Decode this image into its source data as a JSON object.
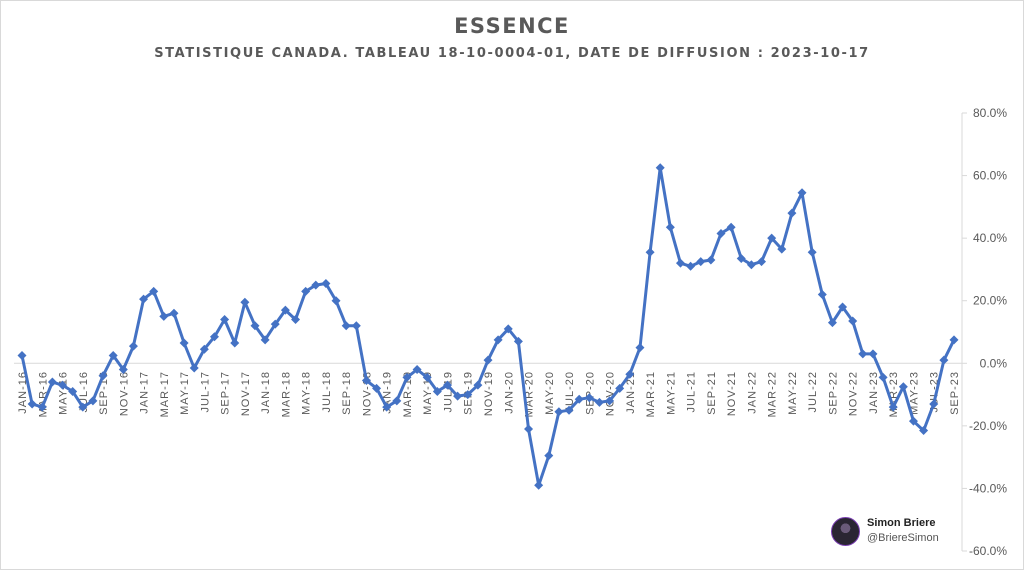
{
  "title": "ESSENCE",
  "subtitle": "STATISTIQUE CANADA.  TABLEAU 18-10-0004-01, DATE DE DIFFUSION : 2023-10-17",
  "author": {
    "name": "Simon Briere",
    "handle": "@BriereSimon"
  },
  "colors": {
    "series": "#4472c4",
    "text": "#595959",
    "zero_line": "#d9d9d9"
  },
  "chart_data": {
    "type": "line",
    "markers": "diamond",
    "y_axis_position": "right",
    "ylim": [
      -60,
      80
    ],
    "y_ticks": [
      80,
      60,
      40,
      20,
      0,
      -20,
      -40,
      -60
    ],
    "y_tick_labels": [
      "80.0%",
      "60.0%",
      "40.0%",
      "20.0%",
      "0.0%",
      "-20.0%",
      "-40.0%",
      "-60.0%"
    ],
    "x_tick_labels": [
      "JAN-16",
      "MAR-16",
      "MAY-16",
      "JUL-16",
      "SEP-16",
      "NOV-16",
      "JAN-17",
      "MAR-17",
      "MAY-17",
      "JUL-17",
      "SEP-17",
      "NOV-17",
      "JAN-18",
      "MAR-18",
      "MAY-18",
      "JUL-18",
      "SEP-18",
      "NOV-18",
      "JAN-19",
      "MAR-19",
      "MAY-19",
      "JUL-19",
      "SEP-19",
      "NOV-19",
      "JAN-20",
      "MAR-20",
      "MAY-20",
      "JUL-20",
      "SEP-20",
      "NOV-20",
      "JAN-21",
      "MAR-21",
      "MAY-21",
      "JUL-21",
      "SEP-21",
      "NOV-21",
      "JAN-22",
      "MAR-22",
      "MAY-22",
      "JUL-22",
      "SEP-22",
      "NOV-22",
      "JAN-23",
      "MAR-23",
      "MAY-23",
      "JUL-23",
      "SEP-23"
    ],
    "grid": false,
    "values": [
      2.5,
      -13,
      -14,
      -6,
      -7,
      -9,
      -14,
      -12,
      -4,
      2.5,
      -2,
      5.5,
      20.5,
      23,
      15,
      16,
      6.5,
      -1.5,
      4.5,
      8.5,
      14,
      6.5,
      19.5,
      12,
      7.5,
      12.5,
      17,
      14,
      23,
      25,
      25.5,
      20,
      12,
      12,
      -5.5,
      -8,
      -14,
      -12,
      -4.5,
      -2,
      -4.5,
      -9,
      -7,
      -10.5,
      -10,
      -7,
      1,
      7.5,
      11,
      7,
      -21,
      -39,
      -29.5,
      -15.5,
      -15,
      -11.5,
      -11,
      -12.5,
      -12,
      -8,
      -3.5,
      5,
      35.5,
      62.5,
      43.5,
      32,
      31,
      32.5,
      33,
      41.5,
      43.5,
      33.5,
      31.5,
      32.5,
      40,
      36.5,
      48,
      54.5,
      35.5,
      22,
      13,
      18,
      13.5,
      3,
      3,
      -4.5,
      -14,
      -7.5,
      -18.5,
      -21.5,
      -13,
      1,
      7.5
    ]
  }
}
